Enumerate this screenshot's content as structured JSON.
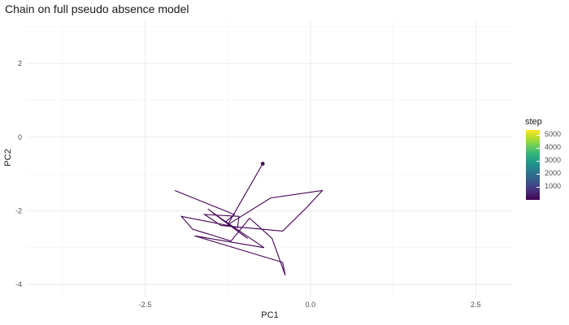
{
  "chart_data": {
    "type": "line",
    "title": "Chain on full pseudo absence model",
    "xlabel": "PC1",
    "ylabel": "PC2",
    "xlim": [
      -4.3,
      3.05
    ],
    "ylim": [
      -4.35,
      3.15
    ],
    "x_ticks": [
      -2.5,
      0.0,
      2.5
    ],
    "x_tick_labels": [
      "-2.5",
      "0.0",
      "2.5"
    ],
    "y_ticks": [
      -4,
      -2,
      0,
      2
    ],
    "y_tick_labels": [
      "-4",
      "-2",
      "0",
      "2"
    ],
    "grid": true,
    "series": [
      {
        "x": [
          -0.72,
          -1.25,
          -0.6,
          0.18,
          -0.05,
          -0.42,
          -1.35,
          -1.6,
          -1.08,
          -1.1,
          -1.95,
          -1.78,
          -1.2,
          -0.92,
          -0.58,
          -0.38,
          -0.42,
          -1.75,
          -0.7,
          -1.48,
          -0.95,
          -1.55,
          -1.28,
          -1.15,
          -2.05
        ],
        "y": [
          -0.72,
          -2.38,
          -1.65,
          -1.45,
          -1.9,
          -2.55,
          -2.4,
          -2.1,
          -2.15,
          -2.45,
          -2.15,
          -2.5,
          -2.82,
          -2.2,
          -2.75,
          -3.75,
          -3.4,
          -2.68,
          -3.0,
          -2.05,
          -2.75,
          -1.95,
          -2.3,
          -2.1,
          -1.45
        ]
      }
    ],
    "start_point": {
      "x": -0.72,
      "y": -0.72
    },
    "legend": {
      "title": "step",
      "position": "right",
      "labels": [
        "5000",
        "4000",
        "3000",
        "2000",
        "1000"
      ],
      "values": [
        5000,
        4000,
        3000,
        2000,
        1000
      ],
      "range": [
        1,
        5400
      ],
      "colormap": "viridis"
    },
    "line_color": "#440154"
  }
}
